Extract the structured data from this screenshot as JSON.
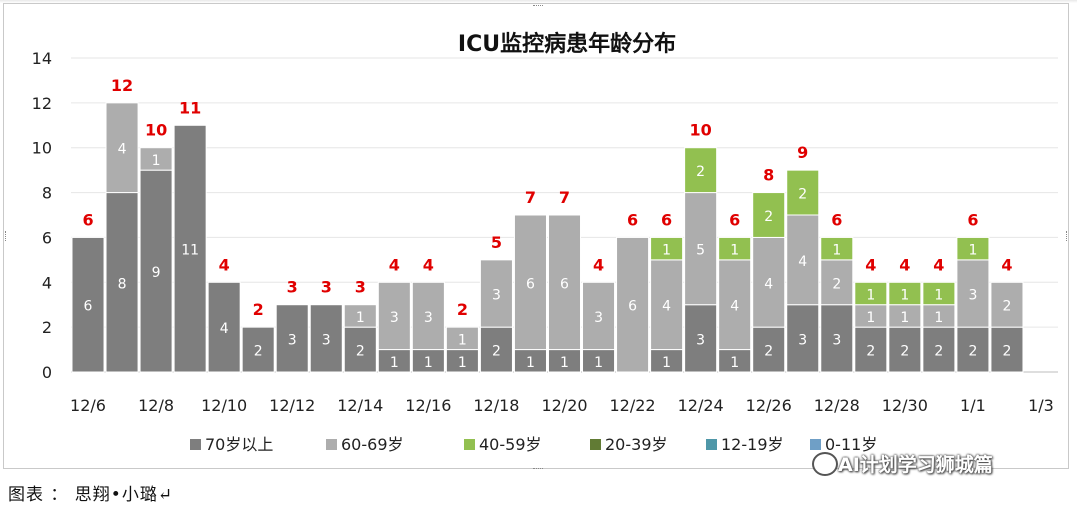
{
  "chart_data": {
    "type": "bar",
    "stacked": true,
    "title": "ICU监控病患年龄分布",
    "xlabel": "",
    "ylabel": "",
    "ylim": [
      0,
      14
    ],
    "yticks": [
      0,
      2,
      4,
      6,
      8,
      10,
      12,
      14
    ],
    "grid": true,
    "legend_position": "bottom",
    "categories": [
      "12/6",
      "12/7",
      "12/8",
      "12/9",
      "12/10",
      "12/11",
      "12/12",
      "12/13",
      "12/14",
      "12/15",
      "12/16",
      "12/17",
      "12/18",
      "12/19",
      "12/20",
      "12/21",
      "12/22",
      "12/23",
      "12/24",
      "12/25",
      "12/26",
      "12/27",
      "12/28",
      "12/29",
      "12/30",
      "12/31",
      "1/1",
      "1/2",
      "1/3"
    ],
    "xtick_labels": [
      "12/6",
      "12/8",
      "12/10",
      "12/12",
      "12/14",
      "12/16",
      "12/18",
      "12/20",
      "12/22",
      "12/24",
      "12/26",
      "12/28",
      "12/30",
      "1/1",
      "1/3"
    ],
    "series": [
      {
        "name": "70岁以上",
        "color": "#7e7e7e",
        "values": [
          6,
          8,
          9,
          11,
          4,
          2,
          3,
          3,
          2,
          1,
          1,
          1,
          2,
          1,
          1,
          1,
          0,
          1,
          3,
          1,
          2,
          3,
          3,
          2,
          2,
          2,
          2,
          2,
          0
        ]
      },
      {
        "name": "60-69岁",
        "color": "#adadad",
        "values": [
          0,
          4,
          1,
          0,
          0,
          0,
          0,
          0,
          1,
          3,
          3,
          1,
          3,
          6,
          6,
          3,
          6,
          4,
          5,
          4,
          4,
          4,
          2,
          1,
          1,
          1,
          3,
          2,
          0
        ]
      },
      {
        "name": "40-59岁",
        "color": "#92c050",
        "values": [
          0,
          0,
          0,
          0,
          0,
          0,
          0,
          0,
          0,
          0,
          0,
          0,
          0,
          0,
          0,
          0,
          0,
          1,
          2,
          1,
          2,
          2,
          1,
          1,
          1,
          1,
          1,
          0,
          0
        ]
      },
      {
        "name": "20-39岁",
        "color": "#617b34",
        "values": [
          0,
          0,
          0,
          0,
          0,
          0,
          0,
          0,
          0,
          0,
          0,
          0,
          0,
          0,
          0,
          0,
          0,
          0,
          0,
          0,
          0,
          0,
          0,
          0,
          0,
          0,
          0,
          0,
          0
        ]
      },
      {
        "name": "12-19岁",
        "color": "#4f97a8",
        "values": [
          0,
          0,
          0,
          0,
          0,
          0,
          0,
          0,
          0,
          0,
          0,
          0,
          0,
          0,
          0,
          0,
          0,
          0,
          0,
          0,
          0,
          0,
          0,
          0,
          0,
          0,
          0,
          0,
          0
        ]
      },
      {
        "name": "0-11岁",
        "color": "#6f9fc6",
        "values": [
          0,
          0,
          0,
          0,
          0,
          0,
          0,
          0,
          0,
          0,
          0,
          0,
          0,
          0,
          0,
          0,
          0,
          0,
          0,
          0,
          0,
          0,
          0,
          0,
          0,
          0,
          0,
          0,
          0
        ]
      }
    ],
    "totals": [
      6,
      12,
      10,
      11,
      4,
      2,
      3,
      3,
      3,
      4,
      4,
      2,
      5,
      7,
      7,
      4,
      6,
      6,
      10,
      6,
      8,
      9,
      6,
      4,
      4,
      4,
      6,
      4,
      null
    ],
    "total_label_color": "#e00000"
  },
  "footer": {
    "caption": "图表 ： 思翔•小璐↵",
    "watermark": "AI计划学习狮城篇"
  }
}
